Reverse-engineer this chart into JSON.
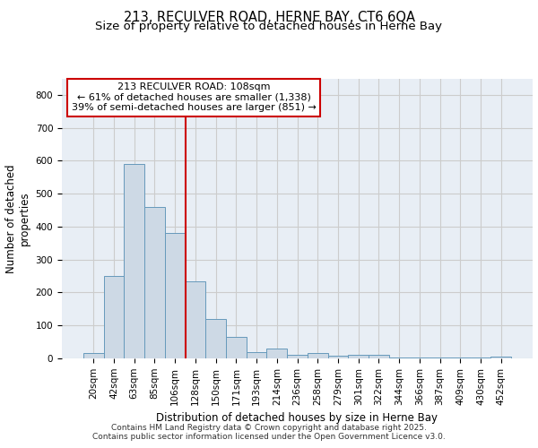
{
  "title1": "213, RECULVER ROAD, HERNE BAY, CT6 6QA",
  "title2": "Size of property relative to detached houses in Herne Bay",
  "xlabel": "Distribution of detached houses by size in Herne Bay",
  "ylabel": "Number of detached\nproperties",
  "bar_labels": [
    "20sqm",
    "42sqm",
    "63sqm",
    "85sqm",
    "106sqm",
    "128sqm",
    "150sqm",
    "171sqm",
    "193sqm",
    "214sqm",
    "236sqm",
    "258sqm",
    "279sqm",
    "301sqm",
    "322sqm",
    "344sqm",
    "366sqm",
    "387sqm",
    "409sqm",
    "430sqm",
    "452sqm"
  ],
  "bar_values": [
    15,
    250,
    590,
    460,
    380,
    235,
    120,
    65,
    20,
    30,
    12,
    15,
    8,
    10,
    10,
    3,
    3,
    3,
    3,
    3,
    5
  ],
  "bar_color": "#cdd9e5",
  "bar_edgecolor": "#6699bb",
  "bar_linewidth": 0.7,
  "grid_color": "#cccccc",
  "background_color": "#e8eef5",
  "red_line_x": 4.5,
  "red_line_color": "#cc0000",
  "annotation_title": "213 RECULVER ROAD: 108sqm",
  "annotation_line1": "← 61% of detached houses are smaller (1,338)",
  "annotation_line2": "39% of semi-detached houses are larger (851) →",
  "annotation_box_facecolor": "#ffffff",
  "annotation_box_edgecolor": "#cc0000",
  "footer1": "Contains HM Land Registry data © Crown copyright and database right 2025.",
  "footer2": "Contains public sector information licensed under the Open Government Licence v3.0.",
  "ylim": [
    0,
    850
  ],
  "yticks": [
    0,
    100,
    200,
    300,
    400,
    500,
    600,
    700,
    800
  ],
  "title_fontsize": 10.5,
  "subtitle_fontsize": 9.5,
  "axis_label_fontsize": 8.5,
  "tick_fontsize": 7.5,
  "annotation_fontsize": 8,
  "footer_fontsize": 6.5
}
